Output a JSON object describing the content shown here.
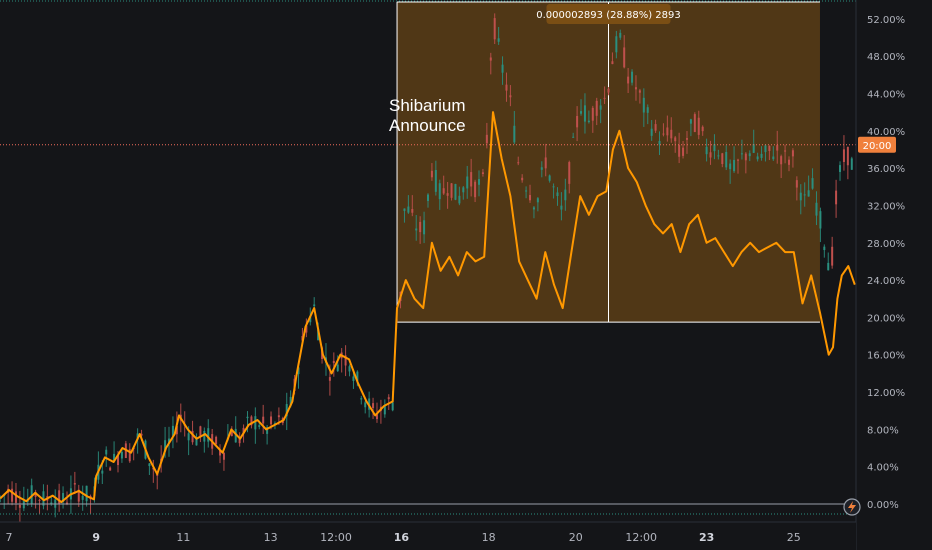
{
  "chart_data": {
    "type": "line",
    "title": "",
    "xlabel": "",
    "ylabel": "",
    "x_ticks": [
      {
        "label": "7",
        "bold": false,
        "day": 7
      },
      {
        "label": "9",
        "bold": true,
        "day": 9
      },
      {
        "label": "11",
        "bold": false,
        "day": 11
      },
      {
        "label": "13",
        "bold": false,
        "day": 13
      },
      {
        "label": "12:00",
        "bold": false,
        "day": 14.5
      },
      {
        "label": "16",
        "bold": true,
        "day": 16
      },
      {
        "label": "18",
        "bold": false,
        "day": 18
      },
      {
        "label": "20",
        "bold": false,
        "day": 20
      },
      {
        "label": "12:00",
        "bold": false,
        "day": 21.5
      },
      {
        "label": "23",
        "bold": true,
        "day": 23
      },
      {
        "label": "25",
        "bold": false,
        "day": 25
      }
    ],
    "y_ticks": [
      "52.00%",
      "48.00%",
      "44.00%",
      "40.00%",
      "36.00%",
      "32.00%",
      "28.00%",
      "24.00%",
      "20.00%",
      "16.00%",
      "12.00%",
      "8.00%",
      "4.00%",
      "0.00%"
    ],
    "ylim": [
      0,
      52
    ],
    "xlim": [
      6.8,
      26.4
    ],
    "annotation": [
      "Shibarium",
      "Announce"
    ],
    "measure": {
      "label": "0.000002893 (28.88%) 2893",
      "x_start": 15.9,
      "x_end": 25.6,
      "y_low": 19.5,
      "y_high": 54,
      "x_cursor": 20.75
    },
    "current_line": {
      "value": 38.5,
      "label": "20:00"
    },
    "zero_line": 0,
    "colors": {
      "orange": "#ff9800",
      "candle_up": "#2a8f7f",
      "candle_down": "#c0504d",
      "measure_fill": "#5a3d16",
      "measure_border": "#ffffff",
      "price_line": "#ef6c5a",
      "badge": "#f0803c",
      "measure_tag": "#7a4e14"
    },
    "series": [
      {
        "name": "",
        "color": "#ff9800",
        "points": [
          [
            6.8,
            0.6
          ],
          [
            7.0,
            1.5
          ],
          [
            7.2,
            0.8
          ],
          [
            7.4,
            0.3
          ],
          [
            7.6,
            1.2
          ],
          [
            7.8,
            0.4
          ],
          [
            8.0,
            0.9
          ],
          [
            8.2,
            0.2
          ],
          [
            8.4,
            1.0
          ],
          [
            8.6,
            1.4
          ],
          [
            8.8,
            0.8
          ],
          [
            8.95,
            0.5
          ],
          [
            9.0,
            3.0
          ],
          [
            9.2,
            5.0
          ],
          [
            9.4,
            4.5
          ],
          [
            9.6,
            6.0
          ],
          [
            9.8,
            5.5
          ],
          [
            10.0,
            7.5
          ],
          [
            10.2,
            5.0
          ],
          [
            10.4,
            3.2
          ],
          [
            10.6,
            6.0
          ],
          [
            10.8,
            7.5
          ],
          [
            10.9,
            9.5
          ],
          [
            11.1,
            8.0
          ],
          [
            11.3,
            7.0
          ],
          [
            11.5,
            7.5
          ],
          [
            11.7,
            6.5
          ],
          [
            11.9,
            5.5
          ],
          [
            12.1,
            8.0
          ],
          [
            12.3,
            7.0
          ],
          [
            12.5,
            8.5
          ],
          [
            12.7,
            9.0
          ],
          [
            12.9,
            8.0
          ],
          [
            13.1,
            8.5
          ],
          [
            13.3,
            9.0
          ],
          [
            13.5,
            11.0
          ],
          [
            13.6,
            14.0
          ],
          [
            13.8,
            19.0
          ],
          [
            14.0,
            21.0
          ],
          [
            14.2,
            16.0
          ],
          [
            14.4,
            14.0
          ],
          [
            14.6,
            16.0
          ],
          [
            14.8,
            15.5
          ],
          [
            15.0,
            13.0
          ],
          [
            15.2,
            11.0
          ],
          [
            15.4,
            9.5
          ],
          [
            15.6,
            10.5
          ],
          [
            15.8,
            11.0
          ],
          [
            15.9,
            21.0
          ],
          [
            16.1,
            24.0
          ],
          [
            16.3,
            22.0
          ],
          [
            16.5,
            21.0
          ],
          [
            16.7,
            28.0
          ],
          [
            16.9,
            25.0
          ],
          [
            17.1,
            26.5
          ],
          [
            17.3,
            24.5
          ],
          [
            17.5,
            27.0
          ],
          [
            17.7,
            26.0
          ],
          [
            17.9,
            26.5
          ],
          [
            18.1,
            42.0
          ],
          [
            18.3,
            37.0
          ],
          [
            18.5,
            33.0
          ],
          [
            18.7,
            26.0
          ],
          [
            18.9,
            24.0
          ],
          [
            19.1,
            22.0
          ],
          [
            19.3,
            27.0
          ],
          [
            19.5,
            23.5
          ],
          [
            19.7,
            21.0
          ],
          [
            19.9,
            27.0
          ],
          [
            20.1,
            33.0
          ],
          [
            20.3,
            31.0
          ],
          [
            20.5,
            33.0
          ],
          [
            20.7,
            33.5
          ],
          [
            20.85,
            38.0
          ],
          [
            21.0,
            40.0
          ],
          [
            21.2,
            36.0
          ],
          [
            21.4,
            34.5
          ],
          [
            21.6,
            32.0
          ],
          [
            21.8,
            30.0
          ],
          [
            22.0,
            29.0
          ],
          [
            22.2,
            30.0
          ],
          [
            22.4,
            27.0
          ],
          [
            22.6,
            30.0
          ],
          [
            22.8,
            31.0
          ],
          [
            23.0,
            28.0
          ],
          [
            23.2,
            28.5
          ],
          [
            23.4,
            27.0
          ],
          [
            23.6,
            25.5
          ],
          [
            23.8,
            27.0
          ],
          [
            24.0,
            28.0
          ],
          [
            24.2,
            27.0
          ],
          [
            24.4,
            27.5
          ],
          [
            24.6,
            28.0
          ],
          [
            24.8,
            27.0
          ],
          [
            25.0,
            27.0
          ],
          [
            25.2,
            21.5
          ],
          [
            25.4,
            24.5
          ],
          [
            25.6,
            20.5
          ],
          [
            25.8,
            16.0
          ],
          [
            25.9,
            16.8
          ],
          [
            26.0,
            22.0
          ],
          [
            26.1,
            24.5
          ],
          [
            26.25,
            25.5
          ],
          [
            26.4,
            23.5
          ]
        ]
      }
    ]
  }
}
